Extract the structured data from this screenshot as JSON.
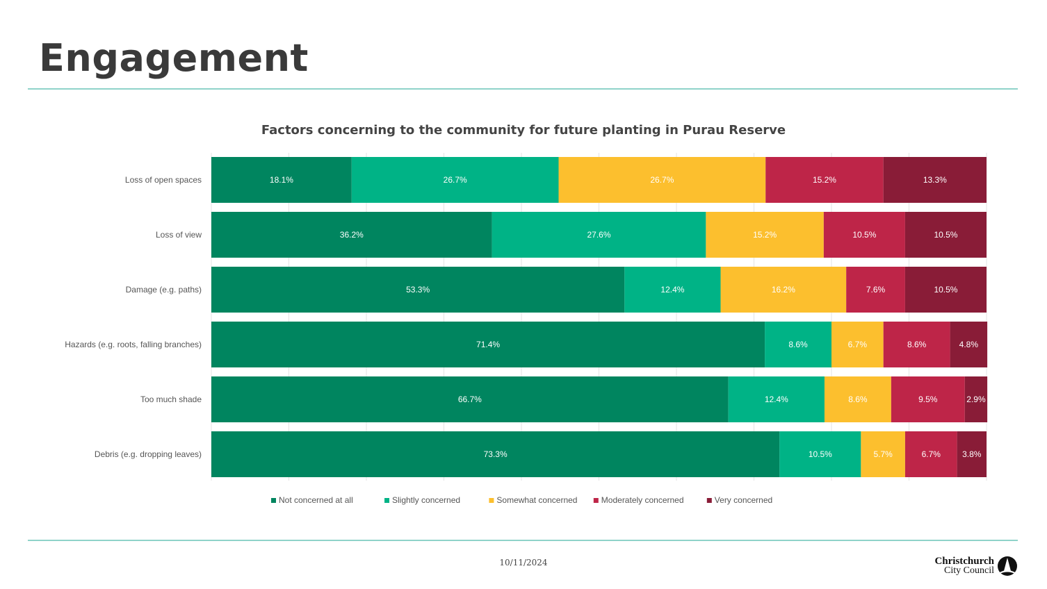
{
  "slide": {
    "title": "Engagement"
  },
  "footer": {
    "date": "10/11/2024",
    "logo_line1": "Christchurch",
    "logo_line2": "City Council"
  },
  "colors": {
    "not_concerned": "#00855f",
    "slightly": "#00b386",
    "somewhat": "#fcbf2e",
    "moderately": "#be2548",
    "very": "#891c37"
  },
  "chart_data": {
    "type": "bar",
    "orientation": "horizontal",
    "stacked": true,
    "percent_stacked": true,
    "title": "Factors concerning to the community for future planting in Purau Reserve",
    "categories": [
      "Loss of open spaces",
      "Loss of view",
      "Damage (e.g. paths)",
      "Hazards (e.g. roots, falling branches)",
      "Too much shade",
      "Debris (e.g. dropping leaves)"
    ],
    "series": [
      {
        "name": "Not concerned at all",
        "color": "#00855f",
        "values": [
          18.1,
          36.2,
          53.3,
          71.4,
          66.7,
          73.3
        ],
        "labels": [
          "18.1%",
          "36.2%",
          "53.3%",
          "71.4%",
          "66.7%",
          "73.3%"
        ]
      },
      {
        "name": "Slightly concerned",
        "color": "#00b386",
        "values": [
          26.7,
          27.6,
          12.4,
          8.6,
          12.4,
          10.5
        ],
        "labels": [
          "26.7%",
          "27.6%",
          "12.4%",
          "8.6%",
          "12.4%",
          "10.5%"
        ]
      },
      {
        "name": "Somewhat concerned",
        "color": "#fcbf2e",
        "values": [
          26.7,
          15.2,
          16.2,
          6.7,
          8.6,
          5.7
        ],
        "labels": [
          "26.7%",
          "15.2%",
          "16.2%",
          "6.7%",
          "8.6%",
          "5.7%"
        ]
      },
      {
        "name": "Moderately concerned",
        "color": "#be2548",
        "values": [
          15.2,
          10.5,
          7.6,
          8.6,
          9.5,
          6.7
        ],
        "labels": [
          "15.2%",
          "10.5%",
          "7.6%",
          "8.6%",
          "9.5%",
          "6.7%"
        ]
      },
      {
        "name": "Very concerned",
        "color": "#891c37",
        "values": [
          13.3,
          10.5,
          10.5,
          4.8,
          2.9,
          3.8
        ],
        "labels": [
          "13.3%",
          "10.5%",
          "10.5%",
          "4.8%",
          "2.9%",
          "3.8%"
        ]
      }
    ],
    "xlim": [
      0,
      100
    ],
    "grid": true,
    "legend_position": "bottom"
  }
}
